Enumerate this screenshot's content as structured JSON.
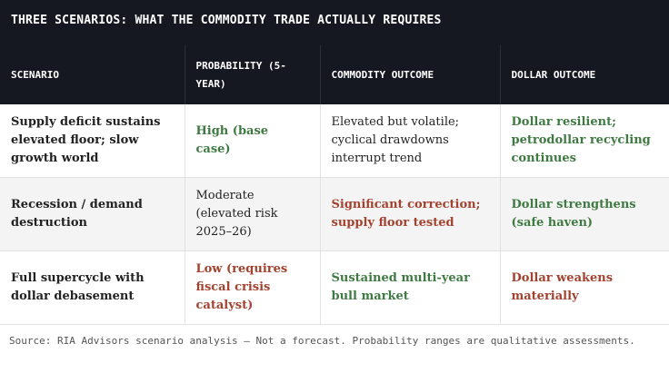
{
  "title": "THREE SCENARIOS: WHAT THE COMMODITY TRADE ACTUALLY REQUIRES",
  "table": {
    "headers": [
      "SCENARIO",
      "PROBABILITY (5-YEAR)",
      "COMMODITY OUTCOME",
      "DOLLAR OUTCOME"
    ],
    "rows": [
      [
        {
          "text": "Supply deficit sustains elevated floor; slow growth world"
        },
        {
          "text": "High (base case)",
          "color": "#3f7a42"
        },
        {
          "text": "Elevated but volatile; cyclical drawdowns interrupt trend"
        },
        {
          "text": "Dollar resilient; petrodollar recycling continues",
          "color": "#3f7a42"
        }
      ],
      [
        {
          "text": "Recession / demand destruction"
        },
        {
          "text": "Moderate (elevated risk 2025–26)"
        },
        {
          "text": "Significant correction; supply floor tested",
          "color": "#a3432f"
        },
        {
          "text": "Dollar strengthens (safe haven)",
          "color": "#3f7a42"
        }
      ],
      [
        {
          "text": "Full supercycle with dollar debasement"
        },
        {
          "text": "Low (requires fiscal crisis catalyst)",
          "color": "#a3432f"
        },
        {
          "text": "Sustained multi-year bull market",
          "color": "#3f7a42"
        },
        {
          "text": "Dollar weakens materially",
          "color": "#a3432f"
        }
      ]
    ]
  },
  "source": "Source: RIA Advisors scenario analysis — Not a forecast. Probability ranges are qualitative assessments."
}
